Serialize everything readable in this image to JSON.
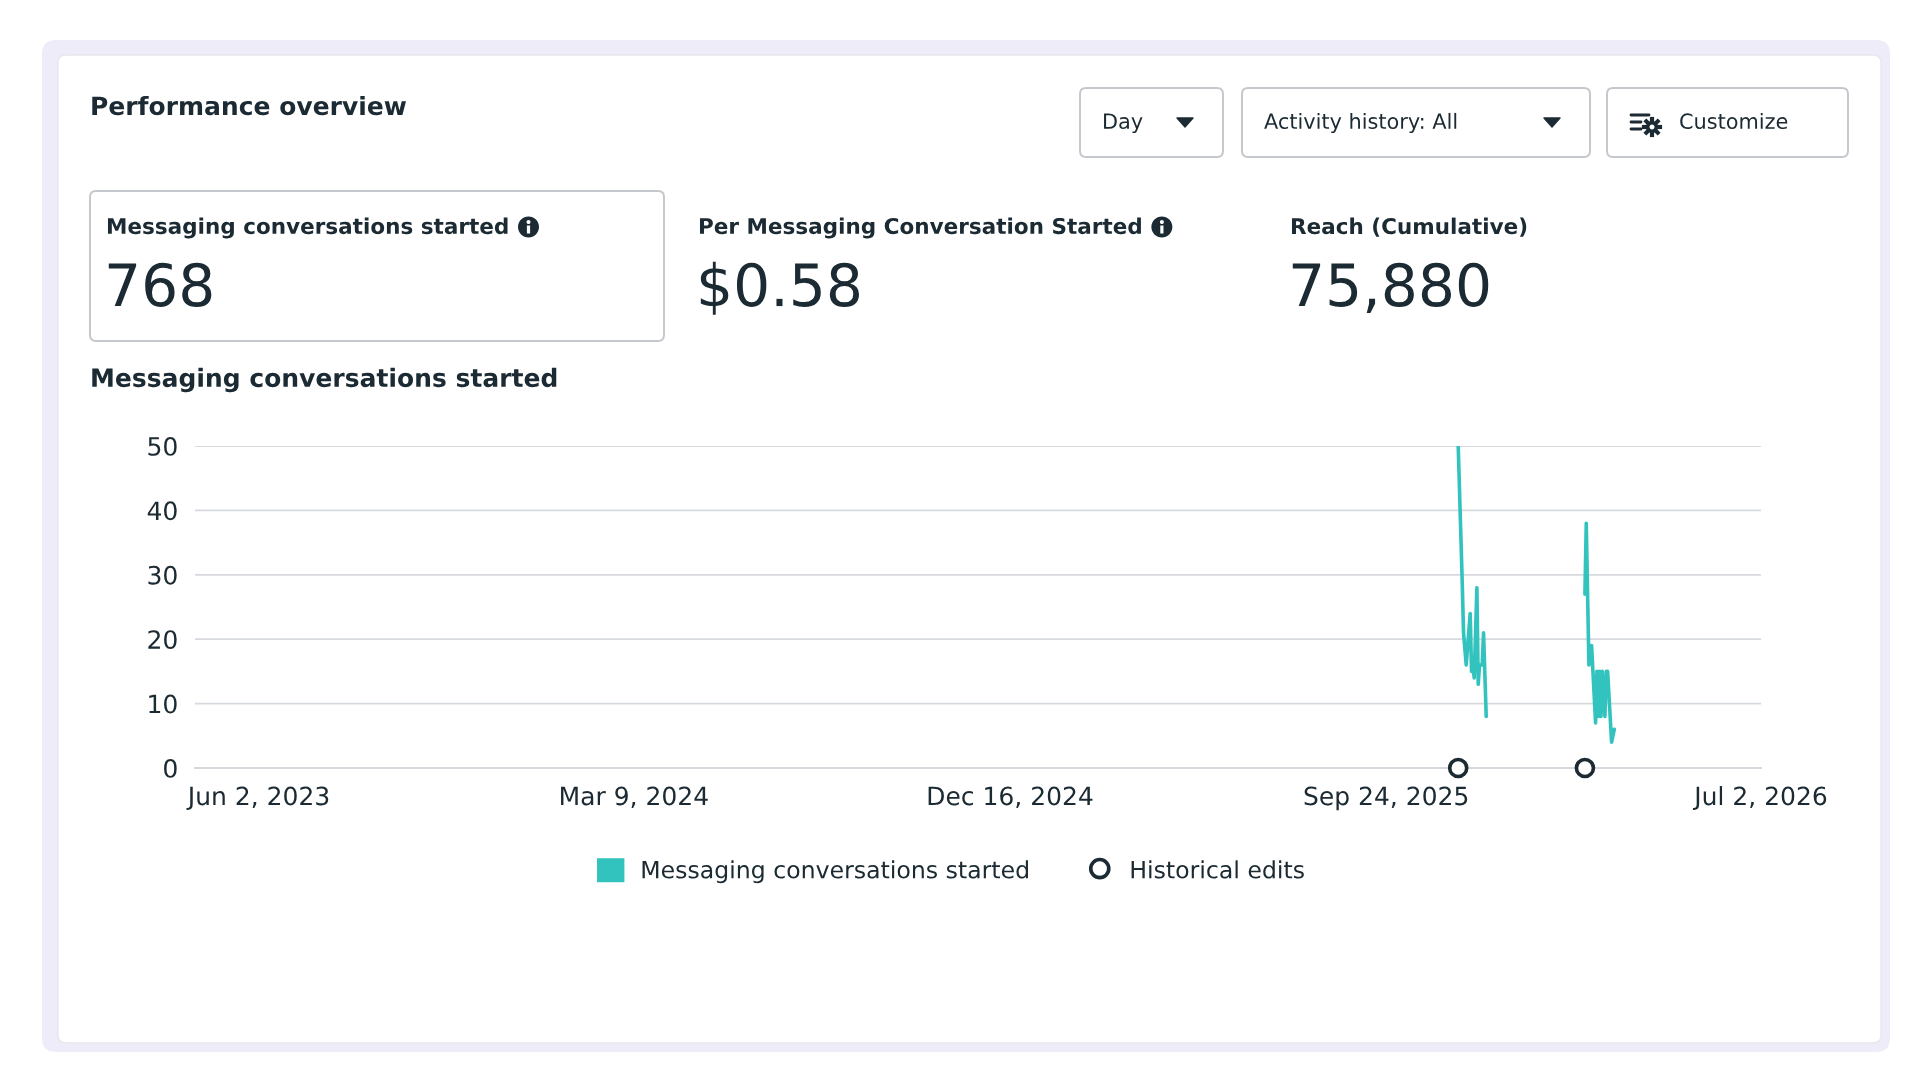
{
  "chart_data": [
    {
      "type": "other",
      "title": "Performance overview",
      "annotations": [
        "Day",
        "Activity history: All",
        "Customize",
        "Messaging conversations started",
        "768",
        "Per Messaging Conversation Started",
        "$0.58",
        "Reach (Cumulative)",
        "75,880"
      ]
    },
    {
      "type": "line",
      "title": "Messaging conversations started",
      "series": [
        {
          "name": "Messaging conversations started",
          "color": "#33c3bf",
          "x": [
            "2025-11-17",
            "2025-11-20",
            "2025-11-21",
            "2025-11-23",
            "2025-11-26",
            "2025-11-27",
            "2025-11-28",
            "2025-11-29",
            "2025-12-01",
            "2025-12-02",
            "2025-12-03",
            "2025-12-05",
            "2025-12-06",
            "2025-12-08",
            "2025-12-09",
            "2026-02-20",
            "2026-02-21",
            "2026-02-23",
            "2026-02-25",
            "2026-02-26",
            "2026-02-28",
            "2026-03-01",
            "2026-03-02",
            "2026-03-03",
            "2026-03-04",
            "2026-03-05",
            "2026-03-07",
            "2026-03-08",
            "2026-03-09",
            "2026-03-12",
            "2026-03-14"
          ],
          "values": [
            50,
            29,
            21,
            16,
            24,
            15,
            16,
            14,
            28,
            13,
            16,
            16,
            21,
            8,
            null,
            27,
            38,
            16,
            19,
            15,
            7,
            15,
            8,
            15,
            8,
            15,
            8,
            15,
            15,
            4,
            6
          ]
        },
        {
          "name": "Historical edits",
          "type": "scatter",
          "color": "#1c2b33",
          "marker": "circle",
          "x": [
            "2025-11-17",
            "2026-02-20"
          ],
          "values": [
            0,
            0
          ]
        }
      ],
      "xlim": [
        "2023-04-15",
        "2026-07-02"
      ],
      "xticks": [
        {
          "value": "2023-06-02",
          "label": "Jun 2, 2023"
        },
        {
          "value": "2024-03-09",
          "label": "Mar 9, 2024"
        },
        {
          "value": "2024-12-16",
          "label": "Dec 16, 2024"
        },
        {
          "value": "2025-09-24",
          "label": "Sep 24, 2025"
        },
        {
          "value": "2026-07-02",
          "label": "Jul 2, 2026"
        }
      ],
      "ylim": [
        0,
        50
      ],
      "yticks": [
        0,
        10,
        20,
        30,
        40,
        50
      ],
      "grid": "y",
      "legend": "bottom",
      "line_style": "solid"
    }
  ]
}
